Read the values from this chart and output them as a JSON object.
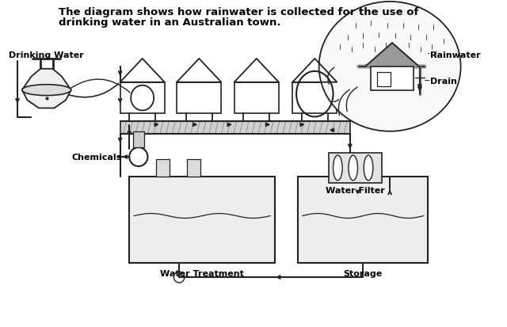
{
  "title_line1": "The diagram shows how rainwater is collected for the use of",
  "title_line2": "drinking water in an Australian town.",
  "title_fontsize": 9.5,
  "labels": {
    "rainwater": "Rainwater",
    "drain": "Drain",
    "drinking_water": "Drinking Water",
    "chemicals": "Chemicals",
    "water_filter": "Water Filter",
    "water_treatment": "Water Treatment",
    "storage": "Storage"
  },
  "label_fontsize": 8.0
}
